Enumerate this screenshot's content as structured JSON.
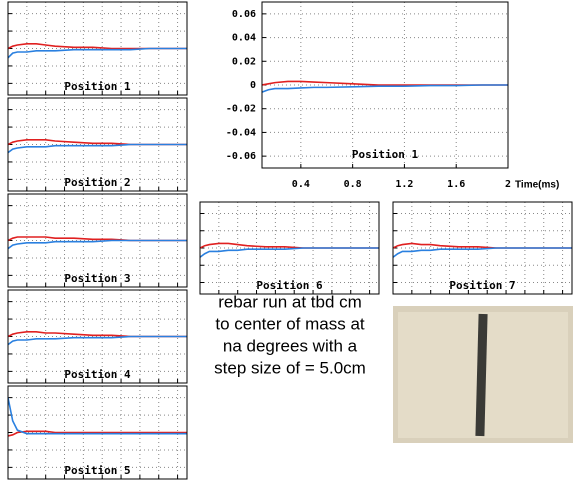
{
  "chart_data": [
    {
      "type": "line",
      "title": "Position 1",
      "xlabel": "Time(ms)",
      "xlim": [
        0.1,
        2
      ],
      "ylim": [
        -0.07,
        0.07
      ],
      "xticks": [
        0.4,
        0.8,
        1.2,
        1.6,
        2
      ],
      "yticks": [
        0.06,
        0.04,
        0.02,
        0,
        -0.02,
        -0.04,
        -0.06
      ],
      "grid": true,
      "tick_labels": true,
      "x": [
        0.1,
        0.15,
        0.2,
        0.3,
        0.4,
        0.5,
        0.6,
        0.8,
        1.0,
        1.2,
        1.4,
        1.6,
        1.8,
        2.0
      ],
      "series": [
        {
          "color": "#e02020",
          "values": [
            0,
            0.001,
            0.002,
            0.003,
            0.003,
            0.0025,
            0.002,
            0.001,
            0,
            0,
            0,
            0,
            0,
            0
          ]
        },
        {
          "color": "#2a80e0",
          "values": [
            -0.006,
            -0.004,
            -0.003,
            -0.003,
            -0.0025,
            -0.002,
            -0.002,
            -0.0015,
            -0.001,
            -0.001,
            -0.0005,
            -0.0005,
            0,
            0
          ]
        }
      ]
    },
    {
      "type": "line",
      "title": "Position 1",
      "xlim": [
        0.1,
        2
      ],
      "ylim": [
        -0.04,
        0.04
      ],
      "xticks": [
        0.3,
        0.5,
        0.7,
        0.9,
        1.1,
        1.3,
        1.5,
        1.7,
        1.9
      ],
      "yticks": [
        -0.03,
        -0.015,
        0,
        0.015,
        0.03
      ],
      "grid": true,
      "tick_labels": false,
      "x": [
        0.1,
        0.15,
        0.2,
        0.3,
        0.4,
        0.5,
        0.6,
        0.8,
        1.0,
        1.2,
        1.4,
        1.6,
        1.8,
        2.0
      ],
      "series": [
        {
          "color": "#e02020",
          "values": [
            0,
            0.002,
            0.003,
            0.004,
            0.004,
            0.003,
            0.002,
            0.001,
            0.001,
            0,
            0,
            0,
            0,
            0
          ]
        },
        {
          "color": "#2a80e0",
          "values": [
            -0.008,
            -0.004,
            -0.003,
            -0.003,
            -0.002,
            -0.002,
            -0.002,
            -0.001,
            -0.001,
            -0.001,
            -0.001,
            0,
            0,
            0
          ]
        }
      ]
    },
    {
      "type": "line",
      "title": "Position 2",
      "xlim": [
        0.1,
        2
      ],
      "ylim": [
        -0.04,
        0.04
      ],
      "xticks": [
        0.3,
        0.5,
        0.7,
        0.9,
        1.1,
        1.3,
        1.5,
        1.7,
        1.9
      ],
      "yticks": [
        -0.03,
        -0.015,
        0,
        0.015,
        0.03
      ],
      "grid": true,
      "tick_labels": false,
      "x": [
        0.1,
        0.15,
        0.2,
        0.3,
        0.4,
        0.5,
        0.6,
        0.8,
        1.0,
        1.2,
        1.4,
        1.6,
        1.8,
        2.0
      ],
      "series": [
        {
          "color": "#e02020",
          "values": [
            0,
            0.002,
            0.003,
            0.004,
            0.004,
            0.004,
            0.003,
            0.002,
            0.001,
            0.001,
            0,
            0,
            0,
            0
          ]
        },
        {
          "color": "#2a80e0",
          "values": [
            -0.007,
            -0.004,
            -0.003,
            -0.002,
            -0.002,
            -0.002,
            -0.001,
            -0.001,
            -0.001,
            -0.001,
            0,
            0,
            0,
            0
          ]
        }
      ]
    },
    {
      "type": "line",
      "title": "Position 3",
      "xlim": [
        0.1,
        2
      ],
      "ylim": [
        -0.04,
        0.04
      ],
      "xticks": [
        0.3,
        0.5,
        0.7,
        0.9,
        1.1,
        1.3,
        1.5,
        1.7,
        1.9
      ],
      "yticks": [
        -0.03,
        -0.015,
        0,
        0.015,
        0.03
      ],
      "grid": true,
      "tick_labels": false,
      "x": [
        0.1,
        0.15,
        0.2,
        0.3,
        0.4,
        0.5,
        0.6,
        0.8,
        1.0,
        1.2,
        1.4,
        1.6,
        1.8,
        2.0
      ],
      "series": [
        {
          "color": "#e02020",
          "values": [
            0,
            0.002,
            0.003,
            0.003,
            0.003,
            0.003,
            0.002,
            0.002,
            0.001,
            0.001,
            0,
            0,
            0,
            0
          ]
        },
        {
          "color": "#2a80e0",
          "values": [
            -0.007,
            -0.004,
            -0.003,
            -0.002,
            -0.002,
            -0.002,
            -0.001,
            -0.001,
            -0.001,
            0,
            0,
            0,
            0,
            0
          ]
        }
      ]
    },
    {
      "type": "line",
      "title": "Position 4",
      "xlim": [
        0.1,
        2
      ],
      "ylim": [
        -0.04,
        0.04
      ],
      "xticks": [
        0.3,
        0.5,
        0.7,
        0.9,
        1.1,
        1.3,
        1.5,
        1.7,
        1.9
      ],
      "yticks": [
        -0.03,
        -0.015,
        0,
        0.015,
        0.03
      ],
      "grid": true,
      "tick_labels": false,
      "x": [
        0.1,
        0.15,
        0.2,
        0.3,
        0.4,
        0.5,
        0.6,
        0.8,
        1.0,
        1.2,
        1.4,
        1.6,
        1.8,
        2.0
      ],
      "series": [
        {
          "color": "#e02020",
          "values": [
            0,
            0.002,
            0.003,
            0.004,
            0.004,
            0.003,
            0.003,
            0.002,
            0.001,
            0.001,
            0,
            0,
            0,
            0
          ]
        },
        {
          "color": "#2a80e0",
          "values": [
            -0.007,
            -0.004,
            -0.003,
            -0.003,
            -0.002,
            -0.002,
            -0.002,
            -0.001,
            -0.001,
            -0.001,
            0,
            0,
            0,
            0
          ]
        }
      ]
    },
    {
      "type": "line",
      "title": "Position 5",
      "xlim": [
        0.1,
        2
      ],
      "ylim": [
        -0.04,
        0.04
      ],
      "xticks": [
        0.3,
        0.5,
        0.7,
        0.9,
        1.1,
        1.3,
        1.5,
        1.7,
        1.9
      ],
      "yticks": [
        -0.03,
        -0.015,
        0,
        0.015,
        0.03
      ],
      "grid": true,
      "tick_labels": false,
      "x": [
        0.1,
        0.15,
        0.2,
        0.3,
        0.4,
        0.5,
        0.6,
        0.8,
        1.0,
        1.2,
        1.4,
        1.6,
        1.8,
        2.0
      ],
      "series": [
        {
          "color": "#e02020",
          "values": [
            -0.003,
            -0.002,
            0,
            0.001,
            0.001,
            0.001,
            0,
            0,
            0,
            0,
            0,
            0,
            0,
            0
          ]
        },
        {
          "color": "#2a80e0",
          "values": [
            0.03,
            0.01,
            0.002,
            -0.001,
            -0.001,
            -0.001,
            -0.001,
            -0.001,
            -0.001,
            -0.001,
            -0.001,
            -0.001,
            -0.001,
            -0.001
          ]
        }
      ]
    },
    {
      "type": "line",
      "title": "Position 6",
      "xlim": [
        0.1,
        2
      ],
      "ylim": [
        -0.04,
        0.04
      ],
      "xticks": [
        0.3,
        0.5,
        0.7,
        0.9,
        1.1,
        1.3,
        1.5,
        1.7,
        1.9
      ],
      "yticks": [
        -0.03,
        -0.015,
        0,
        0.015,
        0.03
      ],
      "grid": true,
      "tick_labels": false,
      "x": [
        0.1,
        0.15,
        0.2,
        0.3,
        0.4,
        0.5,
        0.6,
        0.8,
        1.0,
        1.2,
        1.4,
        1.6,
        1.8,
        2.0
      ],
      "series": [
        {
          "color": "#e02020",
          "values": [
            0,
            0.002,
            0.003,
            0.004,
            0.004,
            0.003,
            0.002,
            0.001,
            0.001,
            0,
            0,
            0,
            0,
            0
          ]
        },
        {
          "color": "#2a80e0",
          "values": [
            -0.008,
            -0.005,
            -0.003,
            -0.003,
            -0.002,
            -0.002,
            -0.001,
            -0.001,
            -0.001,
            0,
            0,
            0,
            0,
            0
          ]
        }
      ]
    },
    {
      "type": "line",
      "title": "Position 7",
      "xlim": [
        0.1,
        2
      ],
      "ylim": [
        -0.04,
        0.04
      ],
      "xticks": [
        0.3,
        0.5,
        0.7,
        0.9,
        1.1,
        1.3,
        1.5,
        1.7,
        1.9
      ],
      "yticks": [
        -0.03,
        -0.015,
        0,
        0.015,
        0.03
      ],
      "grid": true,
      "tick_labels": false,
      "x": [
        0.1,
        0.15,
        0.2,
        0.3,
        0.4,
        0.5,
        0.6,
        0.8,
        1.0,
        1.2,
        1.4,
        1.6,
        1.8,
        2.0
      ],
      "series": [
        {
          "color": "#e02020",
          "values": [
            0,
            0.002,
            0.003,
            0.004,
            0.003,
            0.003,
            0.002,
            0.001,
            0.001,
            0,
            0,
            0,
            0,
            0
          ]
        },
        {
          "color": "#2a80e0",
          "values": [
            -0.008,
            -0.005,
            -0.003,
            -0.003,
            -0.002,
            -0.002,
            -0.001,
            -0.001,
            -0.001,
            0,
            0,
            0,
            0,
            0
          ]
        }
      ]
    }
  ],
  "caption": [
    "rebar run at tbd cm",
    "to center of mass at",
    "na degrees with a",
    "step size of = 5.0cm"
  ]
}
